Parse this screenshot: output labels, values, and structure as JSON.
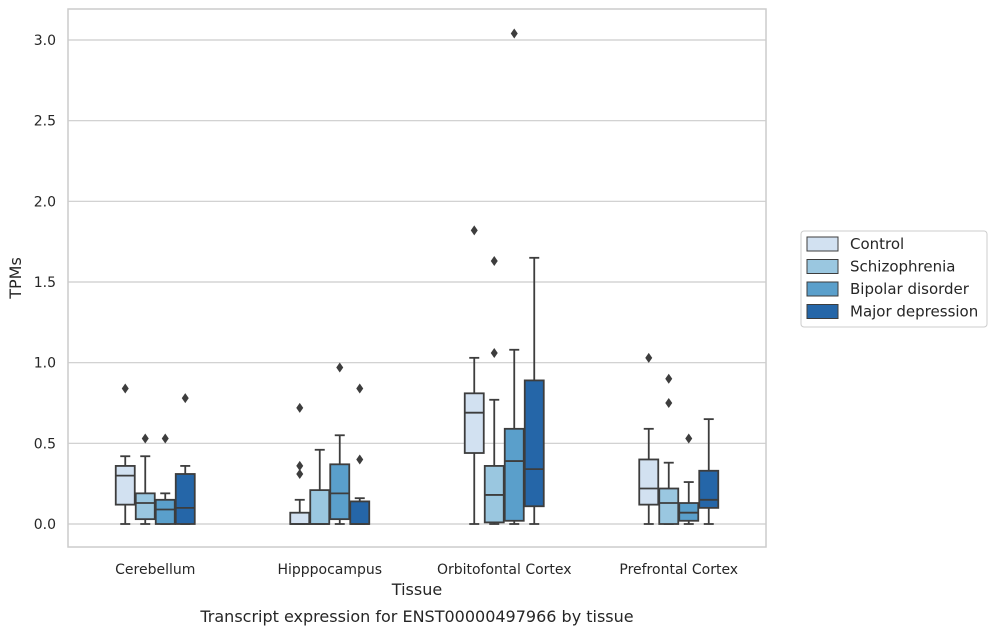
{
  "chart_data": {
    "type": "box",
    "title": "",
    "caption": "Transcript expression for ENST00000497966 by tissue",
    "xlabel": "Tissue",
    "ylabel": "TPMs",
    "ylim": [
      -0.15,
      3.2
    ],
    "yticks": [
      0.0,
      0.5,
      1.0,
      1.5,
      2.0,
      2.5,
      3.0
    ],
    "ytick_labels": [
      "0.0",
      "0.5",
      "1.0",
      "1.5",
      "2.0",
      "2.5",
      "3.0"
    ],
    "grid": "horizontal",
    "legend_position": "right",
    "categories": [
      "Cerebellum",
      "Hipppocampus",
      "Orbitofontal Cortex",
      "Prefrontal Cortex"
    ],
    "series": [
      {
        "name": "Control",
        "color": "#d2e1f1",
        "boxes": [
          {
            "whislo": 0.0,
            "q1": 0.12,
            "med": 0.3,
            "q3": 0.36,
            "whishi": 0.42,
            "fliers": [
              0.84
            ]
          },
          {
            "whislo": 0.0,
            "q1": 0.0,
            "med": 0.0,
            "q3": 0.07,
            "whishi": 0.15,
            "fliers": [
              0.31,
              0.36,
              0.72
            ]
          },
          {
            "whislo": 0.0,
            "q1": 0.44,
            "med": 0.69,
            "q3": 0.81,
            "whishi": 1.03,
            "fliers": [
              1.82
            ]
          },
          {
            "whislo": 0.0,
            "q1": 0.12,
            "med": 0.22,
            "q3": 0.4,
            "whishi": 0.59,
            "fliers": [
              1.03
            ]
          }
        ]
      },
      {
        "name": "Schizophrenia",
        "color": "#9ac7e0",
        "boxes": [
          {
            "whislo": 0.0,
            "q1": 0.03,
            "med": 0.13,
            "q3": 0.19,
            "whishi": 0.42,
            "fliers": [
              0.53
            ]
          },
          {
            "whislo": 0.0,
            "q1": 0.0,
            "med": 0.0,
            "q3": 0.21,
            "whishi": 0.46,
            "fliers": []
          },
          {
            "whislo": 0.0,
            "q1": 0.01,
            "med": 0.18,
            "q3": 0.36,
            "whishi": 0.77,
            "fliers": [
              1.06,
              1.63
            ]
          },
          {
            "whislo": 0.0,
            "q1": 0.0,
            "med": 0.13,
            "q3": 0.22,
            "whishi": 0.38,
            "fliers": [
              0.75,
              0.9
            ]
          }
        ]
      },
      {
        "name": "Bipolar disorder",
        "color": "#5a9fcb",
        "boxes": [
          {
            "whislo": 0.0,
            "q1": 0.0,
            "med": 0.09,
            "q3": 0.15,
            "whishi": 0.19,
            "fliers": [
              0.53
            ]
          },
          {
            "whislo": 0.0,
            "q1": 0.03,
            "med": 0.19,
            "q3": 0.37,
            "whishi": 0.55,
            "fliers": [
              0.97
            ]
          },
          {
            "whislo": 0.0,
            "q1": 0.02,
            "med": 0.39,
            "q3": 0.59,
            "whishi": 1.08,
            "fliers": [
              3.04
            ]
          },
          {
            "whislo": 0.0,
            "q1": 0.02,
            "med": 0.07,
            "q3": 0.13,
            "whishi": 0.26,
            "fliers": [
              0.53
            ]
          }
        ]
      },
      {
        "name": "Major depression",
        "color": "#2566a8",
        "boxes": [
          {
            "whislo": 0.0,
            "q1": 0.0,
            "med": 0.1,
            "q3": 0.31,
            "whishi": 0.36,
            "fliers": [
              0.78
            ]
          },
          {
            "whislo": 0.0,
            "q1": 0.0,
            "med": 0.0,
            "q3": 0.14,
            "whishi": 0.16,
            "fliers": [
              0.4,
              0.84
            ]
          },
          {
            "whislo": 0.0,
            "q1": 0.11,
            "med": 0.34,
            "q3": 0.89,
            "whishi": 1.65,
            "fliers": []
          },
          {
            "whislo": 0.0,
            "q1": 0.1,
            "med": 0.15,
            "q3": 0.33,
            "whishi": 0.65,
            "fliers": []
          }
        ]
      }
    ]
  }
}
